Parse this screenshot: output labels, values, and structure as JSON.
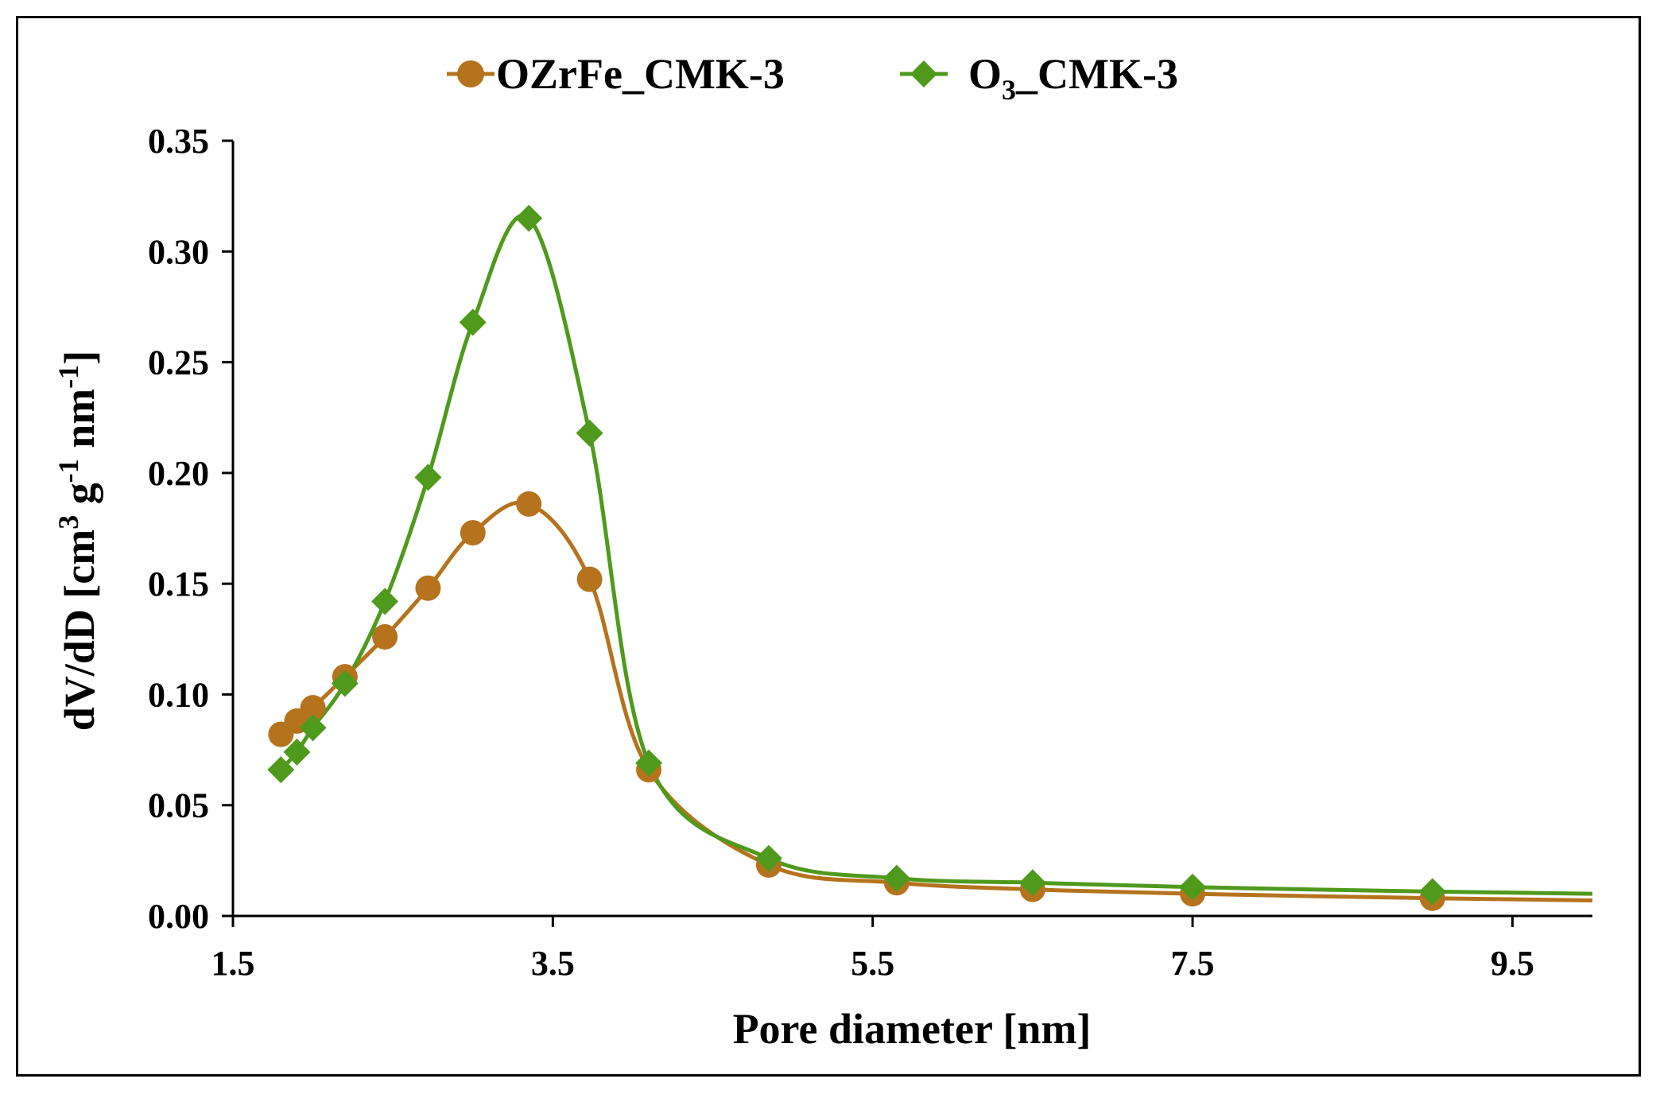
{
  "chart_data": {
    "type": "line",
    "title": "",
    "xlabel": "Pore diameter [nm]",
    "ylabel": {
      "parts": [
        "dV/dD [cm",
        "3",
        " g",
        "-1",
        " nm",
        "-1",
        "]"
      ],
      "full": "dV/dD [cm3 g-1 nm-1]"
    },
    "xlim": [
      1.5,
      10.0
    ],
    "ylim": [
      0.0,
      0.35
    ],
    "x_ticks": [
      1.5,
      3.5,
      5.5,
      7.5,
      9.5
    ],
    "x_tick_labels": [
      "1.5",
      "3.5",
      "5.5",
      "7.5",
      "9.5"
    ],
    "y_ticks": [
      0.0,
      0.05,
      0.1,
      0.15,
      0.2,
      0.25,
      0.3,
      0.35
    ],
    "y_tick_labels": [
      "0.00",
      "0.05",
      "0.10",
      "0.15",
      "0.20",
      "0.25",
      "0.30",
      "0.35"
    ],
    "grid": false,
    "legend_position": "top-center",
    "series": [
      {
        "name": "OZrFe_CMK-3",
        "legend_parts": [
          "OZrFe_CMK-3"
        ],
        "marker": "circle",
        "color": "#B5731D",
        "x": [
          1.8,
          1.9,
          2.0,
          2.2,
          2.45,
          2.72,
          3.0,
          3.35,
          3.73,
          4.1,
          4.85,
          5.65,
          6.5,
          7.5,
          9.0
        ],
        "y": [
          0.082,
          0.088,
          0.094,
          0.108,
          0.126,
          0.148,
          0.173,
          0.186,
          0.152,
          0.066,
          0.023,
          0.015,
          0.012,
          0.01,
          0.008
        ],
        "curve_tail": {
          "x": 10.0,
          "y": 0.007
        }
      },
      {
        "name": "O3_CMK-3",
        "legend_parts": [
          "O",
          "3",
          "_CMK-3"
        ],
        "marker": "diamond",
        "color": "#4F9A1C",
        "x": [
          1.8,
          1.9,
          2.0,
          2.2,
          2.45,
          2.72,
          3.0,
          3.35,
          3.73,
          4.1,
          4.85,
          5.65,
          6.5,
          7.5,
          9.0
        ],
        "y": [
          0.066,
          0.074,
          0.085,
          0.105,
          0.142,
          0.198,
          0.268,
          0.315,
          0.218,
          0.069,
          0.026,
          0.017,
          0.015,
          0.013,
          0.011
        ],
        "curve_tail": {
          "x": 10.0,
          "y": 0.01
        }
      }
    ]
  }
}
